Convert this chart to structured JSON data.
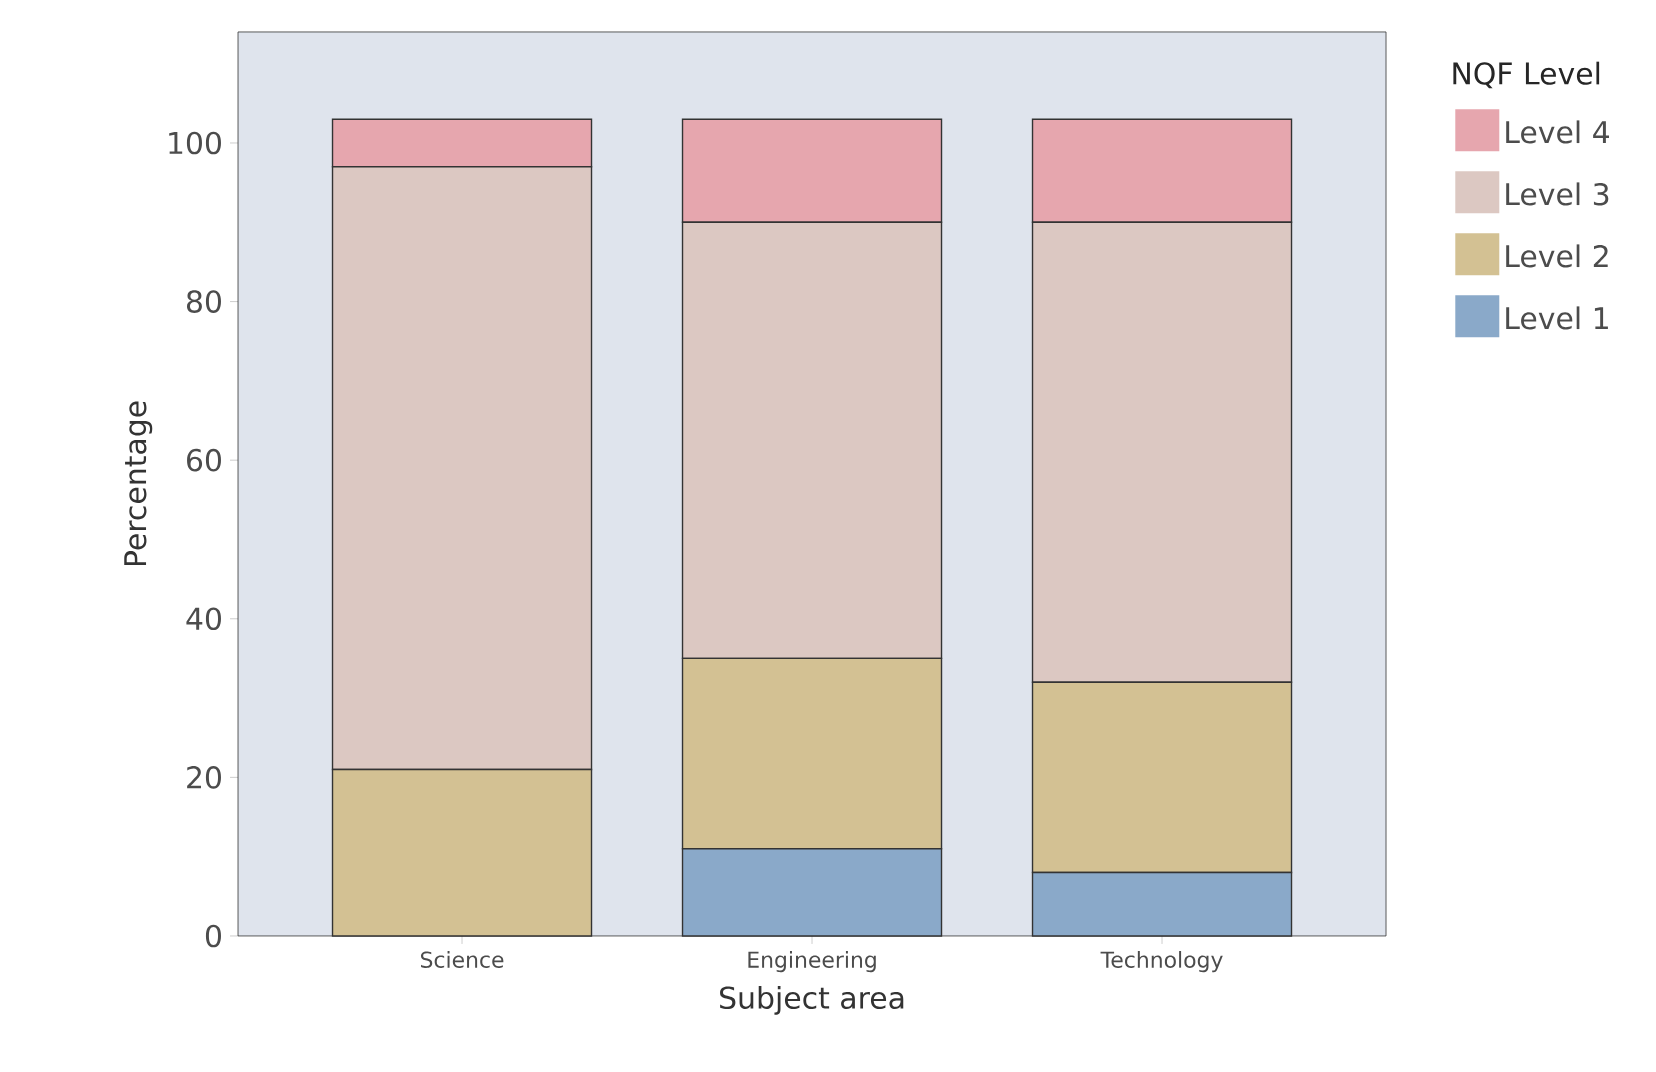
{
  "chart_data": {
    "type": "bar",
    "stacked": true,
    "xlabel": "Subject area",
    "ylabel": "Percentage",
    "legend_title": "NQF Level",
    "legend": "top right",
    "categories": [
      "Science",
      "Engineering",
      "Technology"
    ],
    "ylim": [
      0,
      114
    ],
    "yticks": [
      0,
      20,
      40,
      60,
      80,
      100
    ],
    "grid": false,
    "series": [
      {
        "name": "Level 1",
        "color": "#8aa9c9",
        "values": [
          0,
          11,
          8
        ]
      },
      {
        "name": "Level 2",
        "color": "#d3c193",
        "values": [
          21,
          24,
          24
        ]
      },
      {
        "name": "Level 3",
        "color": "#dcc8c2",
        "values": [
          76,
          55,
          58
        ]
      },
      {
        "name": "Level 4",
        "color": "#e6a6ae",
        "values": [
          6,
          13,
          13
        ]
      }
    ]
  }
}
